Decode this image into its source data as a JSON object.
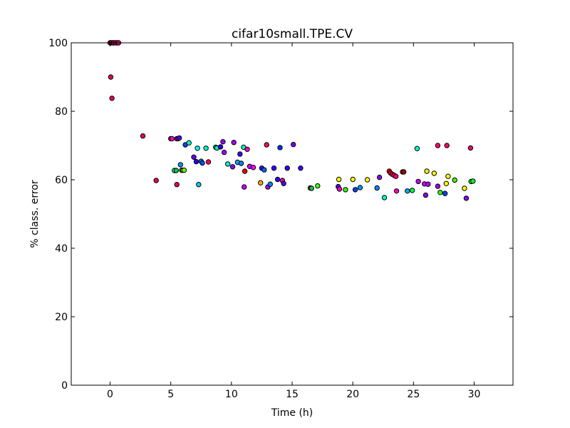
{
  "chart_data": {
    "type": "scatter",
    "title": "cifar10small.TPE.CV",
    "xlabel": "Time (h)",
    "ylabel": "% class. error",
    "xlim": [
      -3.2,
      33.2
    ],
    "ylim": [
      0,
      100
    ],
    "xticks": [
      0,
      5,
      10,
      15,
      20,
      25,
      30
    ],
    "yticks": [
      0,
      20,
      40,
      60,
      80,
      100
    ],
    "grid": false,
    "legend": "none",
    "points": [
      {
        "x": 0.0,
        "y": 100,
        "color": "#e6005c"
      },
      {
        "x": 0.1,
        "y": 100,
        "color": "#e6005c"
      },
      {
        "x": 0.2,
        "y": 100,
        "color": "#e6005c"
      },
      {
        "x": 0.3,
        "y": 100,
        "color": "#e6005c"
      },
      {
        "x": 0.45,
        "y": 100,
        "color": "#e6005c"
      },
      {
        "x": 0.6,
        "y": 100,
        "color": "#e6005c"
      },
      {
        "x": 0.7,
        "y": 100,
        "color": "#e6005c"
      },
      {
        "x": 0.05,
        "y": 90,
        "color": "#e6005c"
      },
      {
        "x": 0.15,
        "y": 83.8,
        "color": "#e6005c"
      },
      {
        "x": 2.7,
        "y": 72.8,
        "color": "#e6005c"
      },
      {
        "x": 3.8,
        "y": 59.8,
        "color": "#e6005c"
      },
      {
        "x": 5.0,
        "y": 72.0,
        "color": "#e6005c"
      },
      {
        "x": 5.1,
        "y": 72.0,
        "color": "#ff00cc"
      },
      {
        "x": 5.3,
        "y": 62.7,
        "color": "#00ffcc"
      },
      {
        "x": 5.45,
        "y": 62.7,
        "color": "#00cc44"
      },
      {
        "x": 5.5,
        "y": 72.0,
        "color": "#cc00ff"
      },
      {
        "x": 5.5,
        "y": 58.6,
        "color": "#e6005c"
      },
      {
        "x": 5.6,
        "y": 72.0,
        "color": "#ff0088"
      },
      {
        "x": 5.7,
        "y": 72.2,
        "color": "#4400ff"
      },
      {
        "x": 5.8,
        "y": 64.4,
        "color": "#0099ff"
      },
      {
        "x": 5.9,
        "y": 62.8,
        "color": "#00cc44"
      },
      {
        "x": 6.0,
        "y": 62.8,
        "color": "#ffff00"
      },
      {
        "x": 6.1,
        "y": 62.8,
        "color": "#66ff00"
      },
      {
        "x": 6.2,
        "y": 70.2,
        "color": "#0044ff"
      },
      {
        "x": 6.5,
        "y": 70.8,
        "color": "#00ffcc"
      },
      {
        "x": 6.9,
        "y": 66.6,
        "color": "#6600ff"
      },
      {
        "x": 7.1,
        "y": 65.3,
        "color": "#2200ff"
      },
      {
        "x": 7.2,
        "y": 69.2,
        "color": "#00ffff"
      },
      {
        "x": 7.3,
        "y": 58.6,
        "color": "#00ccff"
      },
      {
        "x": 7.5,
        "y": 65.4,
        "color": "#0077ff"
      },
      {
        "x": 7.6,
        "y": 64.9,
        "color": "#0055ff"
      },
      {
        "x": 7.9,
        "y": 69.2,
        "color": "#00ffcc"
      },
      {
        "x": 8.1,
        "y": 65.2,
        "color": "#ff0066"
      },
      {
        "x": 8.7,
        "y": 69.5,
        "color": "#00cc88"
      },
      {
        "x": 8.8,
        "y": 69.3,
        "color": "#00ffaa"
      },
      {
        "x": 9.1,
        "y": 69.6,
        "color": "#2200ff"
      },
      {
        "x": 9.3,
        "y": 71.1,
        "color": "#9900ff"
      },
      {
        "x": 9.4,
        "y": 68.0,
        "color": "#aa00ff"
      },
      {
        "x": 9.7,
        "y": 64.6,
        "color": "#00ffdd"
      },
      {
        "x": 10.1,
        "y": 63.8,
        "color": "#8800ff"
      },
      {
        "x": 10.2,
        "y": 70.9,
        "color": "#aa00ff"
      },
      {
        "x": 10.5,
        "y": 65.1,
        "color": "#00aaff"
      },
      {
        "x": 10.7,
        "y": 67.5,
        "color": "#4400ff"
      },
      {
        "x": 10.8,
        "y": 64.8,
        "color": "#0088ff"
      },
      {
        "x": 11.0,
        "y": 69.5,
        "color": "#00ffbb"
      },
      {
        "x": 11.05,
        "y": 57.9,
        "color": "#cc00ff"
      },
      {
        "x": 11.1,
        "y": 62.5,
        "color": "#ff0000"
      },
      {
        "x": 11.3,
        "y": 68.9,
        "color": "#ff00cc"
      },
      {
        "x": 11.5,
        "y": 63.9,
        "color": "#cc00ff"
      },
      {
        "x": 11.8,
        "y": 63.6,
        "color": "#ff00ff"
      },
      {
        "x": 12.4,
        "y": 59.1,
        "color": "#ffaa00"
      },
      {
        "x": 12.5,
        "y": 63.4,
        "color": "#4400ff"
      },
      {
        "x": 12.7,
        "y": 62.9,
        "color": "#0066ff"
      },
      {
        "x": 12.9,
        "y": 70.2,
        "color": "#ff0066"
      },
      {
        "x": 13.0,
        "y": 57.9,
        "color": "#aa00ff"
      },
      {
        "x": 13.2,
        "y": 58.7,
        "color": "#0088ff"
      },
      {
        "x": 13.5,
        "y": 63.4,
        "color": "#3300ff"
      },
      {
        "x": 13.8,
        "y": 60.1,
        "color": "#3300ff"
      },
      {
        "x": 14.0,
        "y": 69.4,
        "color": "#0033ff"
      },
      {
        "x": 14.2,
        "y": 59.8,
        "color": "#ff00aa"
      },
      {
        "x": 14.3,
        "y": 58.9,
        "color": "#5500ff"
      },
      {
        "x": 14.6,
        "y": 63.4,
        "color": "#3300ff"
      },
      {
        "x": 15.1,
        "y": 70.3,
        "color": "#7700ff"
      },
      {
        "x": 15.7,
        "y": 63.4,
        "color": "#4400ff"
      },
      {
        "x": 16.5,
        "y": 57.6,
        "color": "#ff0044"
      },
      {
        "x": 16.6,
        "y": 57.5,
        "color": "#00cc44"
      },
      {
        "x": 17.1,
        "y": 58.2,
        "color": "#44ff00"
      },
      {
        "x": 18.8,
        "y": 58.0,
        "color": "#5500ff"
      },
      {
        "x": 18.85,
        "y": 60.1,
        "color": "#ffff00"
      },
      {
        "x": 18.9,
        "y": 57.3,
        "color": "#ff00cc"
      },
      {
        "x": 19.4,
        "y": 57.1,
        "color": "#33ff00"
      },
      {
        "x": 20.0,
        "y": 60.1,
        "color": "#ffff00"
      },
      {
        "x": 20.2,
        "y": 57.1,
        "color": "#0044ff"
      },
      {
        "x": 20.6,
        "y": 57.7,
        "color": "#0099ff"
      },
      {
        "x": 21.2,
        "y": 60.0,
        "color": "#ffff00"
      },
      {
        "x": 22.0,
        "y": 57.6,
        "color": "#0088ff"
      },
      {
        "x": 22.2,
        "y": 60.7,
        "color": "#8800ff"
      },
      {
        "x": 22.6,
        "y": 54.8,
        "color": "#00ffcc"
      },
      {
        "x": 23.0,
        "y": 62.5,
        "color": "#ff0000"
      },
      {
        "x": 23.1,
        "y": 62.0,
        "color": "#ff0022"
      },
      {
        "x": 23.25,
        "y": 61.6,
        "color": "#ff0044"
      },
      {
        "x": 23.4,
        "y": 61.3,
        "color": "#ff0066"
      },
      {
        "x": 23.55,
        "y": 61.0,
        "color": "#ff0088"
      },
      {
        "x": 23.6,
        "y": 56.7,
        "color": "#ff00cc"
      },
      {
        "x": 24.1,
        "y": 62.3,
        "color": "#ee0000"
      },
      {
        "x": 24.2,
        "y": 62.3,
        "color": "#aa0000"
      },
      {
        "x": 24.5,
        "y": 56.7,
        "color": "#00aaff"
      },
      {
        "x": 24.9,
        "y": 56.9,
        "color": "#00ff44"
      },
      {
        "x": 25.3,
        "y": 69.1,
        "color": "#00ffcc"
      },
      {
        "x": 25.4,
        "y": 59.5,
        "color": "#cc00ff"
      },
      {
        "x": 25.9,
        "y": 58.8,
        "color": "#cc00ff"
      },
      {
        "x": 26.0,
        "y": 55.5,
        "color": "#8800ff"
      },
      {
        "x": 26.1,
        "y": 62.5,
        "color": "#ffee00"
      },
      {
        "x": 26.2,
        "y": 58.7,
        "color": "#bb00ff"
      },
      {
        "x": 26.7,
        "y": 61.9,
        "color": "#ffff00"
      },
      {
        "x": 27.0,
        "y": 58.1,
        "color": "#9900ff"
      },
      {
        "x": 27.0,
        "y": 70.0,
        "color": "#ff0066"
      },
      {
        "x": 27.2,
        "y": 56.3,
        "color": "#33ff00"
      },
      {
        "x": 27.6,
        "y": 56.0,
        "color": "#0044ff"
      },
      {
        "x": 27.7,
        "y": 58.9,
        "color": "#ffff00"
      },
      {
        "x": 27.75,
        "y": 70.0,
        "color": "#ff0066"
      },
      {
        "x": 27.85,
        "y": 61.0,
        "color": "#ffff00"
      },
      {
        "x": 28.4,
        "y": 59.9,
        "color": "#44ff00"
      },
      {
        "x": 29.2,
        "y": 57.5,
        "color": "#ffff00"
      },
      {
        "x": 29.35,
        "y": 54.6,
        "color": "#8800ff"
      },
      {
        "x": 29.7,
        "y": 69.3,
        "color": "#ff0066"
      },
      {
        "x": 29.75,
        "y": 59.5,
        "color": "#22ff00"
      },
      {
        "x": 29.9,
        "y": 59.6,
        "color": "#00ff33"
      }
    ]
  }
}
